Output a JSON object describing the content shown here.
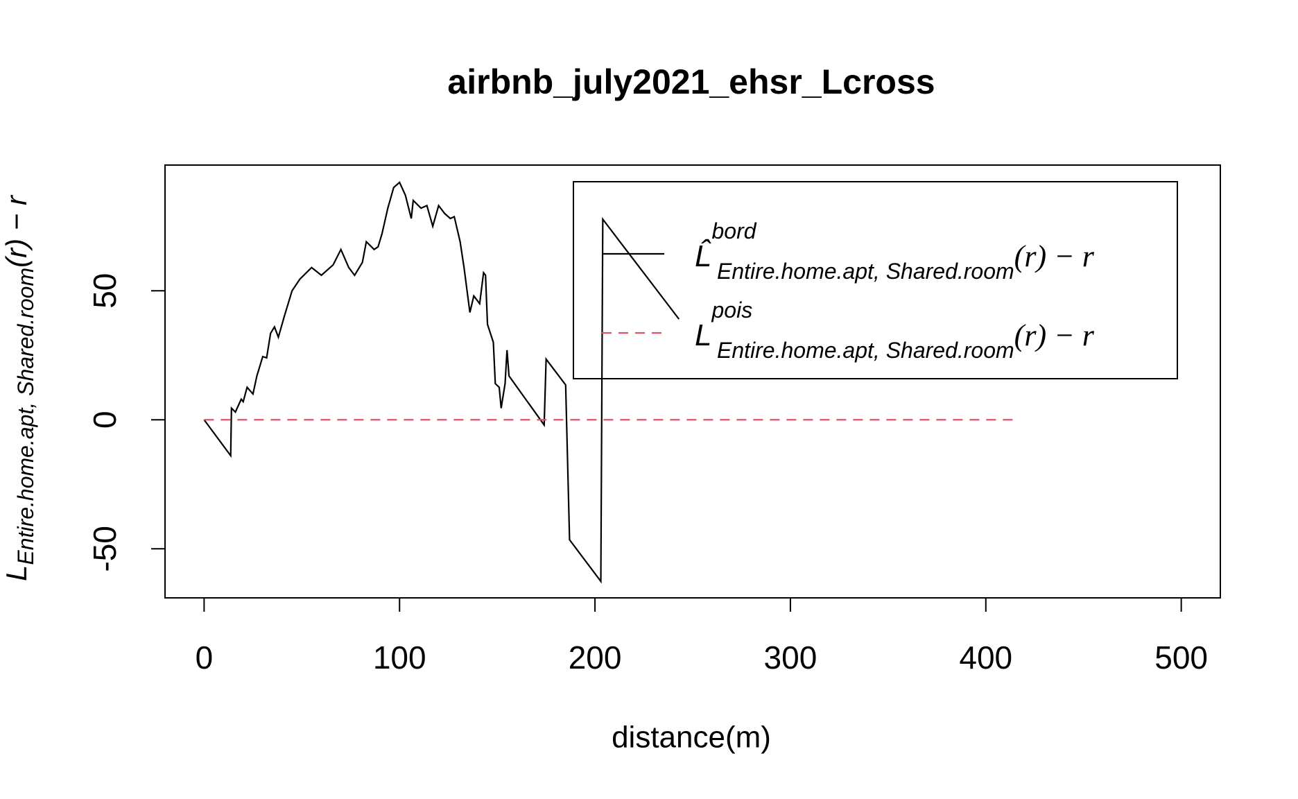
{
  "chart_data": {
    "type": "line",
    "title": "airbnb_july2021_ehsr_Lcross",
    "x_label": "distance(m)",
    "y_label": [
      "L",
      "Entire.home.apt, Shared.room",
      "(r) − r"
    ],
    "xlim": [
      -20,
      520
    ],
    "ylim": [
      -69,
      98.7
    ],
    "xticks": [
      0,
      100,
      200,
      300,
      400,
      500
    ],
    "yticks": [
      -50,
      0,
      50
    ],
    "grid": false,
    "legend": "topright",
    "series": [
      {
        "name": [
          "L̂",
          "bord",
          "Entire.home.apt, Shared.room",
          "(r) − r"
        ],
        "color": "#000000",
        "dash": false,
        "x": [
          0,
          13.6,
          14,
          16,
          19,
          20,
          22,
          25,
          27,
          30,
          32,
          34,
          36,
          38,
          41,
          45,
          49,
          55,
          60,
          66,
          70,
          74,
          77,
          81,
          83,
          87,
          89,
          91,
          94,
          97,
          100,
          103,
          106,
          107,
          111,
          114,
          117,
          120,
          123,
          126,
          128,
          131,
          133,
          136,
          138,
          141,
          143,
          144,
          145,
          148,
          149,
          151,
          152,
          154,
          155,
          156,
          174,
          175,
          185,
          187,
          203,
          204,
          243
        ],
        "values": [
          0,
          -13.9,
          4.5,
          3,
          8,
          7,
          12.6,
          10,
          17,
          24.5,
          24,
          33.5,
          36,
          32,
          40,
          50,
          54.5,
          59,
          56,
          60,
          66,
          59,
          56,
          61,
          69,
          66,
          67,
          72,
          82,
          90,
          92,
          87,
          78,
          85,
          82,
          83,
          75,
          83,
          80,
          78,
          78.7,
          69,
          59,
          41.6,
          48,
          45,
          57,
          56,
          37,
          30,
          14,
          12.6,
          4.5,
          14,
          27,
          17,
          -2,
          23.5,
          13.5,
          -46.5,
          -62.6,
          77.7,
          39
        ]
      },
      {
        "name": [
          "L",
          "pois",
          "Entire.home.apt, Shared.room",
          "(r) − r"
        ],
        "color": "#df536b",
        "dash": true,
        "x": [
          0,
          415
        ],
        "values": [
          0,
          0
        ]
      }
    ]
  }
}
